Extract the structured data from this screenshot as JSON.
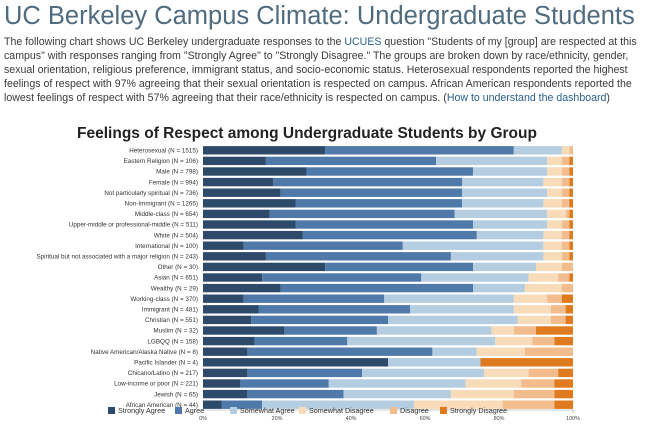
{
  "page": {
    "title": "UC Berkeley Campus Climate: Undergraduate Students",
    "description_before_link": "The following chart shows UC Berkeley undergraduate responses to the ",
    "description_link": "UCUES",
    "description_after_link": " question \"Students of my [group] are respected at this campus\" with responses ranging from \"Strongly Agree\" to \"Strongly Disagree.\" The groups are broken down by race/ethnicity, gender, sexual orientation, religious preference, immigrant status, and socio-economic status. Heterosexual respondents reported the highest feelings of respect with 97% agreeing that their sexual orientation is respected on campus. African American respondents reported the lowest feelings of respect with 57% agreeing that their race/ethnicity is respected on campus. (",
    "description_link2": "How to understand the dashboard",
    "description_end": ")"
  },
  "chart_data": {
    "type": "bar",
    "orientation": "horizontal",
    "stacked": true,
    "title": "Feelings of Respect among Undergraduate Students by Group",
    "xlim": [
      0,
      100
    ],
    "x_tick_labels": [
      "0%",
      "20%",
      "40%",
      "60%",
      "80%",
      "100%"
    ],
    "grid": false,
    "legend_position": "bottom",
    "categories": [
      "Heterosexual (N = 1515)",
      "Eastern Religion (N = 106)",
      "Male (N = 798)",
      "Female (N = 994)",
      "Not particularly spiritual (N = 736)",
      "Non-Immigrant (N = 1265)",
      "Middle-class (N = 654)",
      "Upper-middle or professional-middle (N = 511)",
      "White (N = 504)",
      "International (N = 100)",
      "Spiritual but not associated with a major religion (N = 243)",
      "Other (N = 30)",
      "Asian (N = 651)",
      "Wealthy (N = 29)",
      "Working-class (N = 370)",
      "Immigrant (N = 481)",
      "Christian (N = 551)",
      "Muslim (N = 32)",
      "LGBQQ (N = 158)",
      "Native American/Alaska Native (N = 8)",
      "Pacific Islander (N = 4)",
      "Chicano/Latino (N = 217)",
      "Low-income or poor (N = 221)",
      "Jewish (N = 65)",
      "African American (N = 44)"
    ],
    "series": [
      {
        "name": "Strongly Agree",
        "color": "#2e4a6b",
        "values": [
          33,
          17,
          28,
          19,
          21,
          25,
          18,
          25,
          27,
          11,
          17,
          33,
          16,
          21,
          11,
          15,
          13,
          22,
          14,
          12,
          50,
          12,
          10,
          12,
          5
        ]
      },
      {
        "name": "Agree",
        "color": "#4f79a8",
        "values": [
          51,
          46,
          45,
          51,
          49,
          45,
          50,
          48,
          47,
          43,
          50,
          40,
          43,
          52,
          38,
          41,
          37,
          25,
          25,
          50,
          0,
          31,
          24,
          26,
          11
        ]
      },
      {
        "name": "Somewhat Agree",
        "color": "#b4cde0",
        "values": [
          13,
          30,
          20,
          22,
          23,
          22,
          25,
          20,
          18,
          38,
          25,
          17,
          29,
          14,
          35,
          28,
          35,
          31,
          40,
          12,
          25,
          33,
          37,
          29,
          41
        ]
      },
      {
        "name": "Somewhat Disagree",
        "color": "#f8dbb8",
        "values": [
          2,
          4,
          4,
          5,
          4,
          5,
          5,
          4,
          5,
          5,
          5,
          7,
          8,
          10,
          9,
          10,
          9,
          6,
          10,
          13,
          0,
          12,
          15,
          17,
          24
        ]
      },
      {
        "name": "Disagree",
        "color": "#f2bc8c",
        "values": [
          1,
          2,
          2,
          2,
          2,
          2,
          1,
          2,
          2,
          2,
          2,
          3,
          3,
          3,
          4,
          4,
          4,
          6,
          6,
          13,
          0,
          8,
          9,
          11,
          14
        ]
      },
      {
        "name": "Strongly Disagree",
        "color": "#e07a1f",
        "values": [
          0,
          1,
          1,
          1,
          1,
          1,
          1,
          1,
          1,
          1,
          1,
          0,
          1,
          0,
          3,
          2,
          2,
          10,
          5,
          0,
          25,
          4,
          5,
          5,
          5
        ]
      }
    ]
  }
}
